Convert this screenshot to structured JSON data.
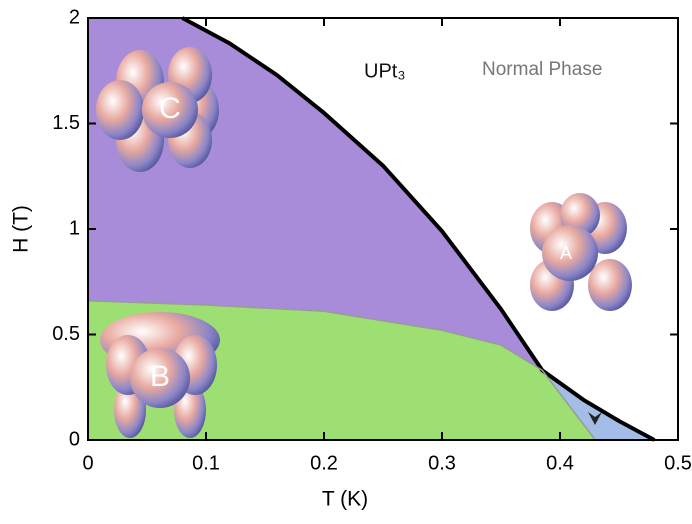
{
  "chart_data": {
    "type": "phase",
    "xlabel": "T (K)",
    "ylabel": "H (T)",
    "xlim": [
      0,
      0.5
    ],
    "ylim": [
      0,
      2
    ],
    "xticks": [
      0,
      0.1,
      0.2,
      0.3,
      0.4,
      0.5
    ],
    "yticks": [
      0,
      0.5,
      1,
      1.5,
      2
    ],
    "series": [
      {
        "color": "#000000",
        "x": [
          0.08,
          0.12,
          0.16,
          0.2,
          0.25,
          0.3,
          0.35,
          0.385,
          0.42,
          0.45,
          0.48
        ],
        "values": [
          2,
          1.88,
          1.73,
          1.55,
          1.3,
          0.99,
          0.62,
          0.33,
          0.19,
          0.09,
          0
        ]
      },
      {
        "color": "#9a9a9a",
        "x": [
          0,
          0.1,
          0.2,
          0.3,
          0.35,
          0.385,
          0.43
        ],
        "values": [
          0.66,
          0.64,
          0.61,
          0.52,
          0.45,
          0.33,
          0
        ]
      }
    ],
    "fills": {
      "C": "#a98cd9",
      "B": "#9ddf72",
      "A": "#a4bde6"
    },
    "annotations": [
      "UPt₃",
      "Normal Phase",
      "A",
      "B",
      "C"
    ]
  }
}
